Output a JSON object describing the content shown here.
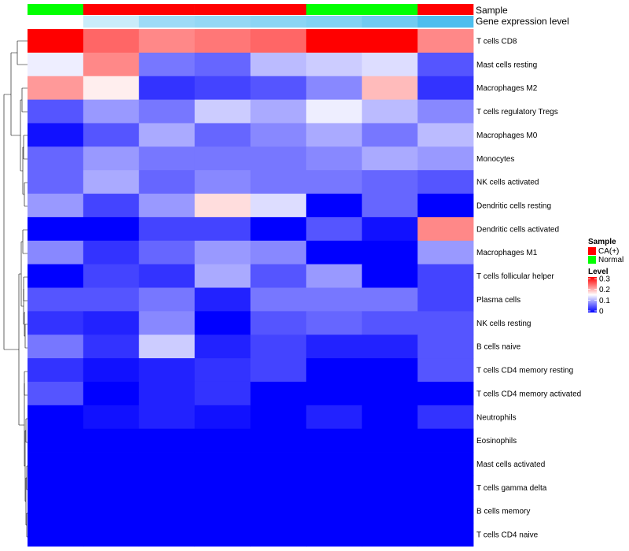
{
  "chart_data": {
    "type": "heatmap",
    "title": "",
    "xlabel": "",
    "ylabel": "",
    "color_scale": {
      "min": 0,
      "max": 0.3,
      "low_color": "#0000ff",
      "mid_color": "#ffffff",
      "high_color": "#ff0000"
    },
    "annotation_labels": {
      "sample": "Sample",
      "gene_expression": "Gene expression level"
    },
    "samples": [
      "Normal",
      "CA(+)",
      "CA(+)",
      "CA(+)",
      "CA(+)",
      "Normal",
      "Normal",
      "CA(+)"
    ],
    "gene_expression_levels": [
      0.0,
      0.3,
      0.55,
      0.6,
      0.65,
      0.7,
      0.8,
      1.0
    ],
    "rows": [
      "T cells CD8",
      "Mast cells resting",
      "Macrophages M2",
      "T cells regulatory  Tregs",
      "Macrophages M0",
      "Monocytes",
      "NK cells activated",
      "Dendritic cells resting",
      "Dendritic cells activated",
      "Macrophages M1",
      "T cells follicular helper",
      "Plasma cells",
      "NK cells resting",
      "B cells naive",
      "T cells CD4 memory resting",
      "T cells CD4 memory activated",
      "Neutrophils",
      "Eosinophils",
      "Mast cells activated",
      "T cells gamma delta",
      "B cells memory",
      "T cells CD4 naive"
    ],
    "values": [
      [
        0.3,
        0.24,
        0.22,
        0.23,
        0.24,
        0.3,
        0.3,
        0.22
      ],
      [
        0.14,
        0.22,
        0.07,
        0.06,
        0.11,
        0.12,
        0.13,
        0.05
      ],
      [
        0.21,
        0.16,
        0.03,
        0.04,
        0.05,
        0.08,
        0.19,
        0.03
      ],
      [
        0.05,
        0.09,
        0.07,
        0.12,
        0.1,
        0.14,
        0.11,
        0.08
      ],
      [
        0.01,
        0.05,
        0.1,
        0.06,
        0.08,
        0.1,
        0.07,
        0.11
      ],
      [
        0.06,
        0.09,
        0.07,
        0.07,
        0.07,
        0.08,
        0.1,
        0.09
      ],
      [
        0.06,
        0.1,
        0.06,
        0.08,
        0.07,
        0.07,
        0.06,
        0.05
      ],
      [
        0.09,
        0.04,
        0.09,
        0.17,
        0.13,
        0.0,
        0.06,
        0.0
      ],
      [
        0.0,
        0.0,
        0.04,
        0.04,
        0.0,
        0.05,
        0.01,
        0.22
      ],
      [
        0.08,
        0.03,
        0.06,
        0.09,
        0.08,
        0.0,
        0.0,
        0.09
      ],
      [
        0.0,
        0.04,
        0.03,
        0.1,
        0.05,
        0.09,
        0.0,
        0.04
      ],
      [
        0.05,
        0.05,
        0.07,
        0.02,
        0.07,
        0.07,
        0.07,
        0.04
      ],
      [
        0.03,
        0.02,
        0.08,
        0.0,
        0.05,
        0.06,
        0.05,
        0.05
      ],
      [
        0.07,
        0.03,
        0.12,
        0.02,
        0.04,
        0.02,
        0.02,
        0.05
      ],
      [
        0.03,
        0.01,
        0.02,
        0.03,
        0.04,
        0.0,
        0.0,
        0.05
      ],
      [
        0.05,
        0.0,
        0.02,
        0.03,
        0.0,
        0.0,
        0.0,
        0.0
      ],
      [
        0.0,
        0.01,
        0.02,
        0.01,
        0.0,
        0.02,
        0.0,
        0.03
      ],
      [
        0.0,
        0.0,
        0.0,
        0.0,
        0.0,
        0.0,
        0.0,
        0.0
      ],
      [
        0.0,
        0.0,
        0.0,
        0.0,
        0.0,
        0.0,
        0.0,
        0.0
      ],
      [
        0.0,
        0.0,
        0.0,
        0.0,
        0.0,
        0.0,
        0.0,
        0.0
      ],
      [
        0.0,
        0.0,
        0.0,
        0.0,
        0.0,
        0.0,
        0.0,
        0.0
      ],
      [
        0.0,
        0.0,
        0.0,
        0.0,
        0.0,
        0.0,
        0.0,
        0.0
      ]
    ],
    "legend": {
      "sample_title": "Sample",
      "sample_entries": [
        {
          "label": "CA(+)",
          "color": "#ff0000"
        },
        {
          "label": "Normal",
          "color": "#00ff00"
        }
      ],
      "level_title": "Level",
      "level_ticks": [
        "0.3",
        "0.2",
        "0.1",
        "0"
      ],
      "position": "right"
    }
  }
}
